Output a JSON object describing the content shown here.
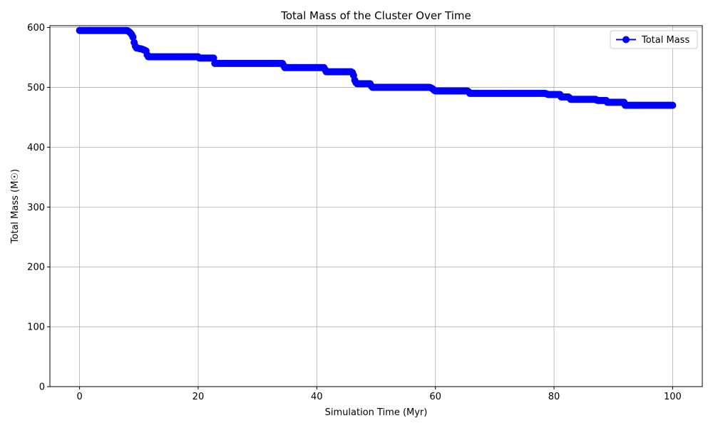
{
  "chart_data": {
    "type": "line",
    "title": "Total Mass of the Cluster Over Time",
    "xlabel": "Simulation Time (Myr)",
    "ylabel": "Total Mass (M☉)",
    "xlim": [
      -5,
      105
    ],
    "ylim": [
      0,
      603
    ],
    "xticks": [
      0,
      20,
      40,
      60,
      80,
      100
    ],
    "yticks": [
      0,
      100,
      200,
      300,
      400,
      500,
      600
    ],
    "grid": true,
    "legend_position": "top-right",
    "series": [
      {
        "name": "Total Mass",
        "color": "#0000ff",
        "marker": "circle",
        "x": [
          0.0,
          8.0,
          8.5,
          8.8,
          9.0,
          9.2,
          9.5,
          10.5,
          11.2,
          11.5,
          20.0,
          20.2,
          22.6,
          22.8,
          34.3,
          34.5,
          41.3,
          41.5,
          45.8,
          46.1,
          46.4,
          46.7,
          49.0,
          49.3,
          59.0,
          59.3,
          59.6,
          59.9,
          65.5,
          65.8,
          78.5,
          79.0,
          81.0,
          81.2,
          82.5,
          82.8,
          87.0,
          87.3,
          88.8,
          89.0,
          91.8,
          92.0,
          100.0
        ],
        "values": [
          595,
          595,
          592,
          588,
          584,
          575,
          566,
          564,
          561,
          551,
          551,
          549,
          549,
          540,
          540,
          533,
          533,
          526,
          526,
          524,
          512,
          506,
          506,
          500,
          500,
          499,
          497,
          494,
          494,
          490,
          490,
          488,
          488,
          484,
          484,
          480,
          480,
          478,
          478,
          475,
          475,
          470,
          470
        ]
      }
    ]
  }
}
